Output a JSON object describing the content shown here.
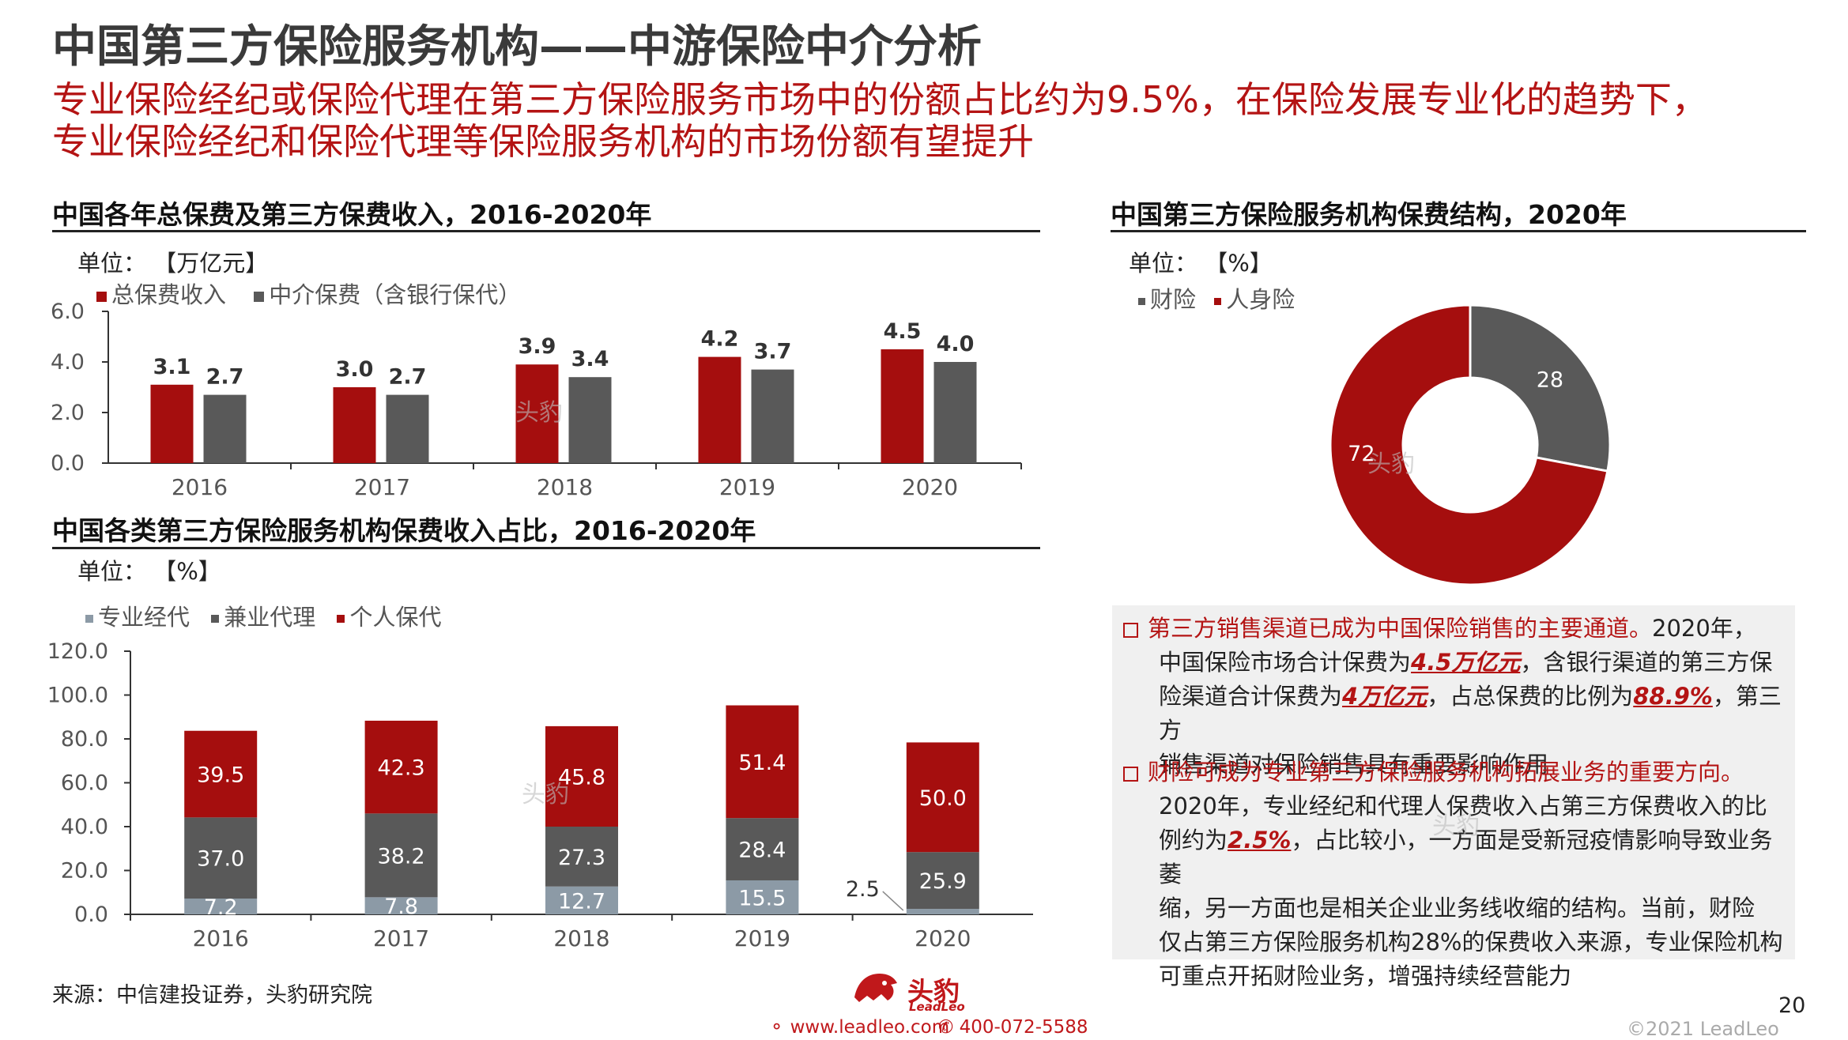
{
  "header": {
    "title": "中国第三方保险服务机构——中游保险中介分析",
    "subtitle_line1": "专业保险经纪或保险代理在第三方保险服务市场中的份额占比约为9.5%，在保险发展专业化的趋势下，",
    "subtitle_line2": "专业保险经纪和保险代理等保险服务机构的市场份额有望提升"
  },
  "colors": {
    "dark_red": "#a50e0e",
    "dark_gray": "#595959",
    "light_gray": "#8c9aa6",
    "accent_red": "#b41414"
  },
  "charts": {
    "premium": {
      "title": "中国各年总保费及第三方保费收入，2016-2020年",
      "unit": "单位：  【万亿元】",
      "legend": [
        "总保费收入",
        "中介保费（含银行保代）"
      ]
    },
    "structure": {
      "title": "中国第三方保险服务机构保费结构，2020年",
      "unit": "单位：  【%】",
      "legend": [
        "财险",
        "人身险"
      ]
    },
    "share": {
      "title": "中国各类第三方保险服务机构保费收入占比，2016-2020年",
      "unit": "单位：  【%】",
      "legend": [
        "专业经代",
        "兼业代理",
        "个人保代"
      ]
    }
  },
  "chart_data": [
    {
      "type": "bar",
      "categories": [
        "2016",
        "2017",
        "2018",
        "2019",
        "2020"
      ],
      "series": [
        {
          "name": "总保费收入",
          "values": [
            3.1,
            3.0,
            3.9,
            4.2,
            4.5
          ]
        },
        {
          "name": "中介保费（含银行保代）",
          "values": [
            2.7,
            2.7,
            3.4,
            3.7,
            4.0
          ]
        }
      ],
      "ylim": [
        0,
        6
      ],
      "yticks": [
        "0.0",
        "2.0",
        "4.0",
        "6.0"
      ],
      "data_labels": [
        [
          "3.1",
          "3.0",
          "3.9",
          "4.2",
          "4.5"
        ],
        [
          "2.7",
          "2.7",
          "3.4",
          "3.7",
          "4.0"
        ]
      ]
    },
    {
      "type": "pie",
      "labels": [
        "财险",
        "人身险"
      ],
      "values": [
        28,
        72
      ],
      "data_labels": [
        "28",
        "72"
      ],
      "donut": true
    },
    {
      "type": "bar",
      "stacked": true,
      "categories": [
        "2016",
        "2017",
        "2018",
        "2019",
        "2020"
      ],
      "series": [
        {
          "name": "专业经代",
          "values": [
            7.2,
            7.8,
            12.7,
            15.5,
            2.5
          ]
        },
        {
          "name": "兼业代理",
          "values": [
            37.0,
            38.2,
            27.3,
            28.4,
            25.9
          ]
        },
        {
          "name": "个人保代",
          "values": [
            39.5,
            42.3,
            45.8,
            51.4,
            50.0
          ]
        }
      ],
      "ylim": [
        0,
        120
      ],
      "yticks": [
        "0.0",
        "20.0",
        "40.0",
        "60.0",
        "80.0",
        "100.0",
        "120.0"
      ],
      "data_labels": [
        [
          "7.2",
          "7.8",
          "12.7",
          "15.5",
          "2.5"
        ],
        [
          "37.0",
          "38.2",
          "27.3",
          "28.4",
          "25.9"
        ],
        [
          "39.5",
          "42.3",
          "45.8",
          "51.4",
          "50.0"
        ]
      ]
    }
  ],
  "notes": {
    "p1_heading": "第三方销售渠道已成为中国保险销售的主要通道。",
    "p1_heading_tail": "2020年，",
    "p1_l1a": "中国保险市场合计保费为",
    "p1_hl1": "4.5万亿元",
    "p1_l1b": "，含银行渠道的第三方保",
    "p1_l2a": "险渠道合计保费为",
    "p1_hl2": "4万亿元",
    "p1_l2b": "，占总保费的比例为",
    "p1_hl3": "88.9%",
    "p1_l2c": "，第三方",
    "p1_l3": "销售渠道对保险销售具有重要影响作用",
    "p2_heading": "财险可成为专业第三方保险服务机构拓展业务的重要方向。",
    "p2_l1": "2020年，专业经纪和代理人保费收入占第三方保费收入的比",
    "p2_l2a": "例约为",
    "p2_hl1": "2.5%",
    "p2_l2b": "，占比较小，一方面是受新冠疫情影响导致业务萎",
    "p2_l3": "缩，另一方面也是相关企业业务线收缩的结构。当前，财险",
    "p2_l4": "仅占第三方保险服务机构28%的保费收入来源，专业保险机构",
    "p2_l5": "可重点开拓财险业务，增强持续经营能力"
  },
  "footer": {
    "source": "来源：中信建投证券，头豹研究院",
    "brand": "头豹",
    "brand_sub": "LeadLeo",
    "website": "www.leadleo.com",
    "phone": "400-072-5588",
    "copyright": "©2021 LeadLeo",
    "page": "20"
  },
  "watermarks": [
    "头豹",
    "头豹",
    "头豹",
    "头豹"
  ]
}
